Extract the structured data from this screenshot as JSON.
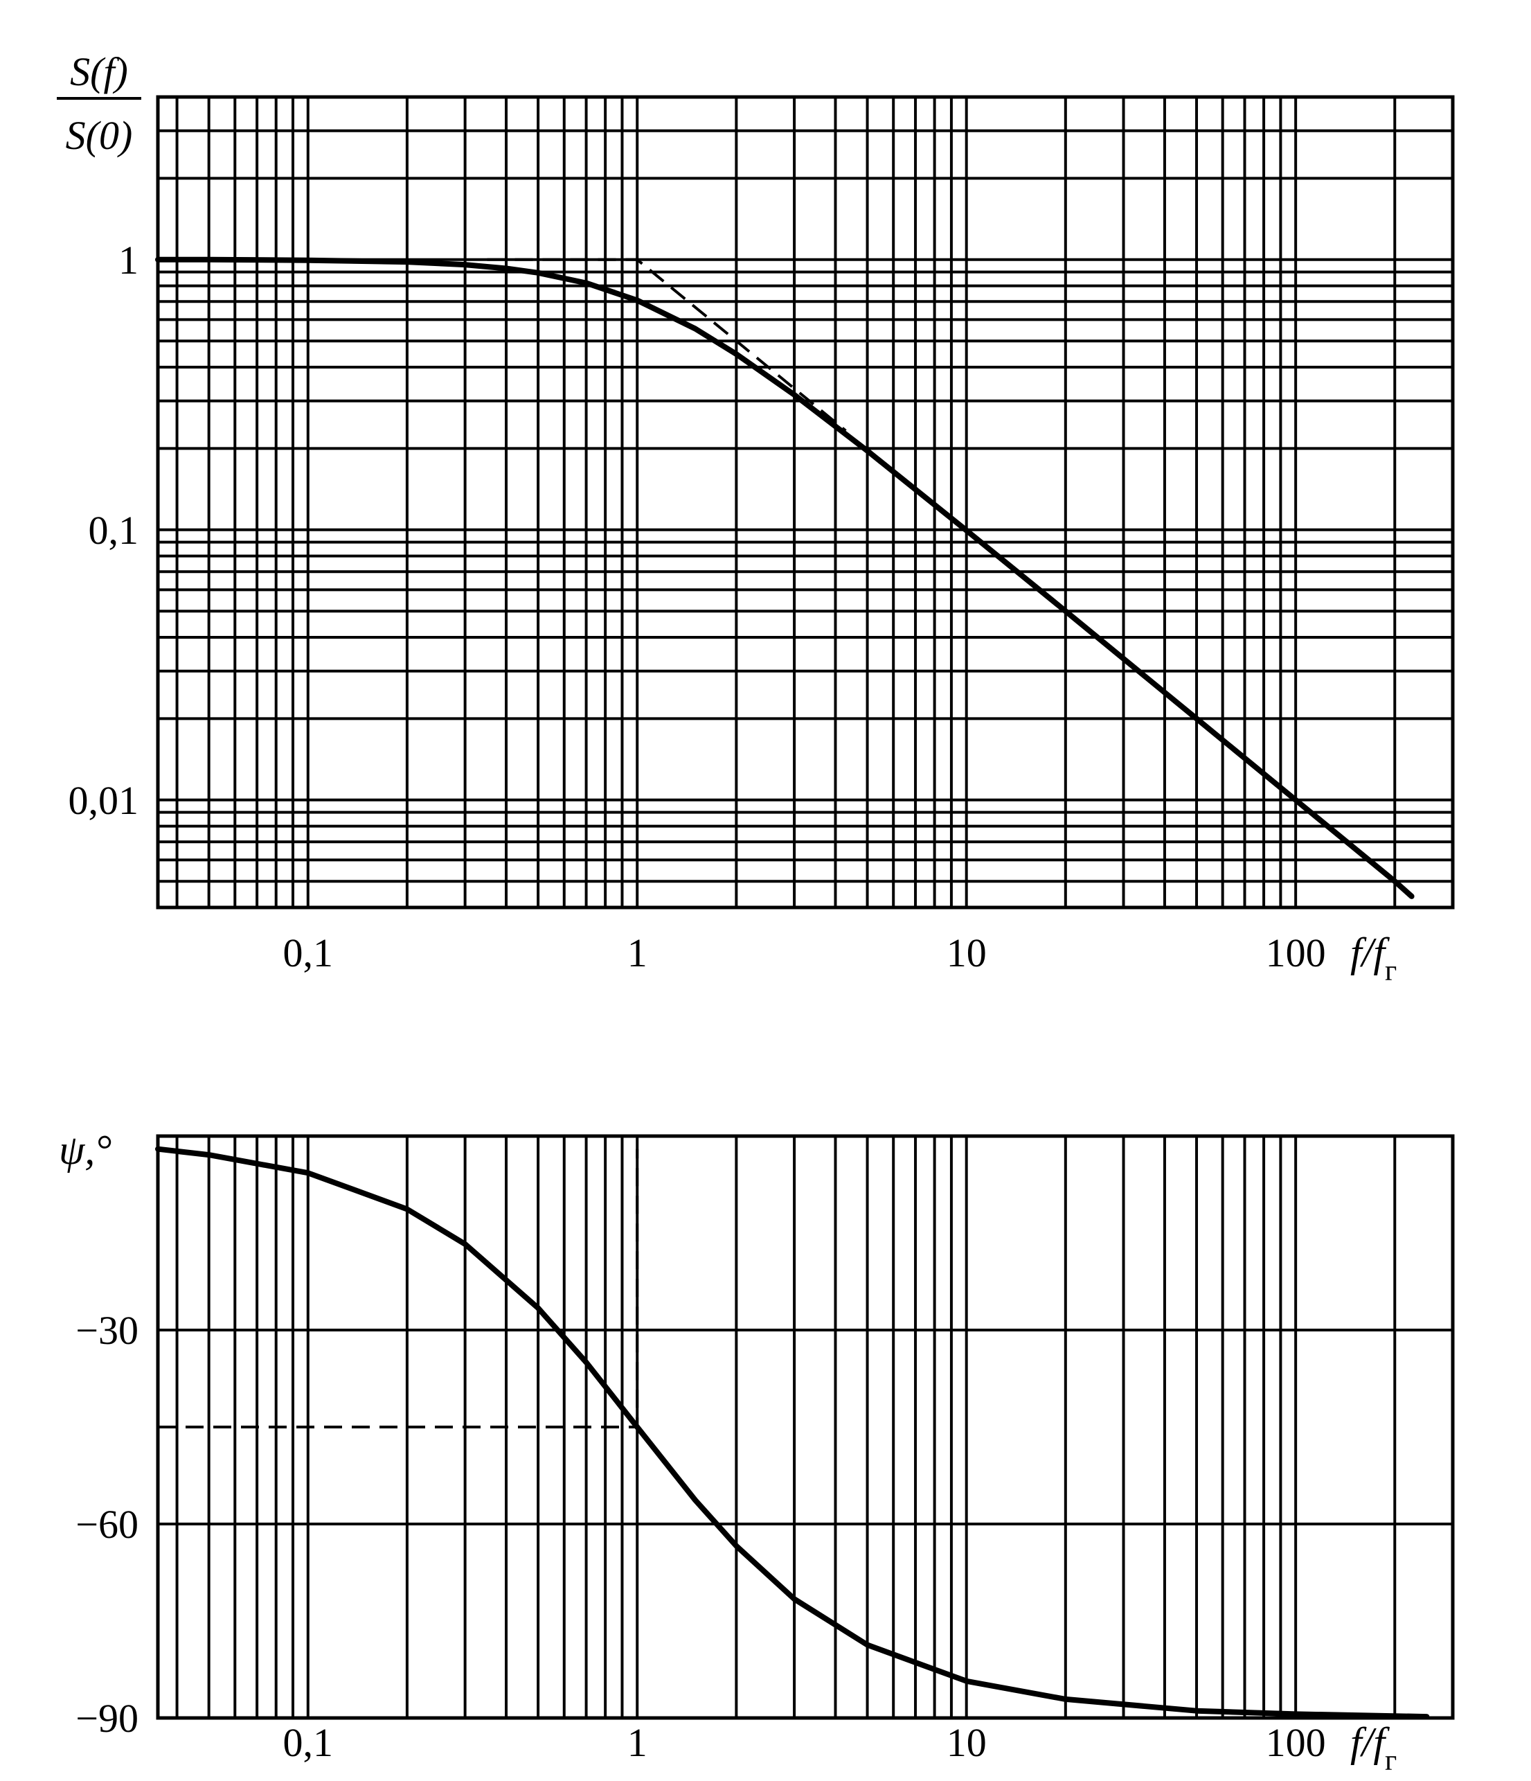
{
  "chart_data": [
    {
      "type": "line",
      "xscale": "log",
      "yscale": "log",
      "xlim": [
        0.035,
        300
      ],
      "ylim": [
        0.004,
        4
      ],
      "grid": true,
      "ylabel_num": "S(f)",
      "ylabel_den": "S(0)",
      "xlabel_main": "f/f",
      "xlabel_sub": "г",
      "x_ticks": [
        {
          "v": 0.1,
          "label": "0,1"
        },
        {
          "v": 1,
          "label": "1"
        },
        {
          "v": 10,
          "label": "10"
        },
        {
          "v": 100,
          "label": "100"
        }
      ],
      "y_ticks": [
        {
          "v": 1,
          "label": "1"
        },
        {
          "v": 0.1,
          "label": "0,1"
        },
        {
          "v": 0.01,
          "label": "0,01"
        }
      ],
      "series": [
        {
          "style": "solid",
          "x": [
            0.035,
            0.05,
            0.1,
            0.2,
            0.3,
            0.4,
            0.5,
            0.7,
            1,
            1.5,
            2,
            3,
            5,
            10,
            20,
            50,
            100,
            200,
            225
          ],
          "y": [
            1.0,
            1.0,
            0.995,
            0.981,
            0.958,
            0.928,
            0.894,
            0.819,
            0.707,
            0.555,
            0.447,
            0.316,
            0.196,
            0.0995,
            0.05,
            0.02,
            0.01,
            0.005,
            0.0044
          ]
        },
        {
          "style": "dashed",
          "x": [
            0.35,
            1,
            2,
            4.3
          ],
          "y": [
            1,
            1,
            0.5,
            0.2326
          ]
        }
      ]
    },
    {
      "type": "line",
      "xscale": "log",
      "xlim": [
        0.035,
        300
      ],
      "ylim": [
        -90,
        0
      ],
      "grid": true,
      "ylabel": "ψ,°",
      "xlabel_main": "f/f",
      "xlabel_sub": "г",
      "x_ticks": [
        {
          "v": 0.1,
          "label": "0,1"
        },
        {
          "v": 1,
          "label": "1"
        },
        {
          "v": 10,
          "label": "10"
        },
        {
          "v": 100,
          "label": "100"
        }
      ],
      "y_ticks": [
        {
          "v": -30,
          "label": "−30"
        },
        {
          "v": -60,
          "label": "−60"
        },
        {
          "v": -90,
          "label": "−90"
        }
      ],
      "series": [
        {
          "style": "solid",
          "x": [
            0.035,
            0.05,
            0.1,
            0.2,
            0.3,
            0.5,
            0.7,
            1,
            1.5,
            2,
            3,
            5,
            10,
            20,
            50,
            100,
            200,
            250
          ],
          "y": [
            -2.0,
            -2.9,
            -5.7,
            -11.3,
            -16.7,
            -26.6,
            -35.0,
            -45.0,
            -56.3,
            -63.4,
            -71.6,
            -78.7,
            -84.3,
            -87.1,
            -88.9,
            -89.4,
            -89.7,
            -89.8
          ]
        },
        {
          "style": "dashed",
          "x": [
            0.035,
            1,
            1
          ],
          "y": [
            -45,
            -45,
            -2
          ]
        }
      ]
    }
  ]
}
